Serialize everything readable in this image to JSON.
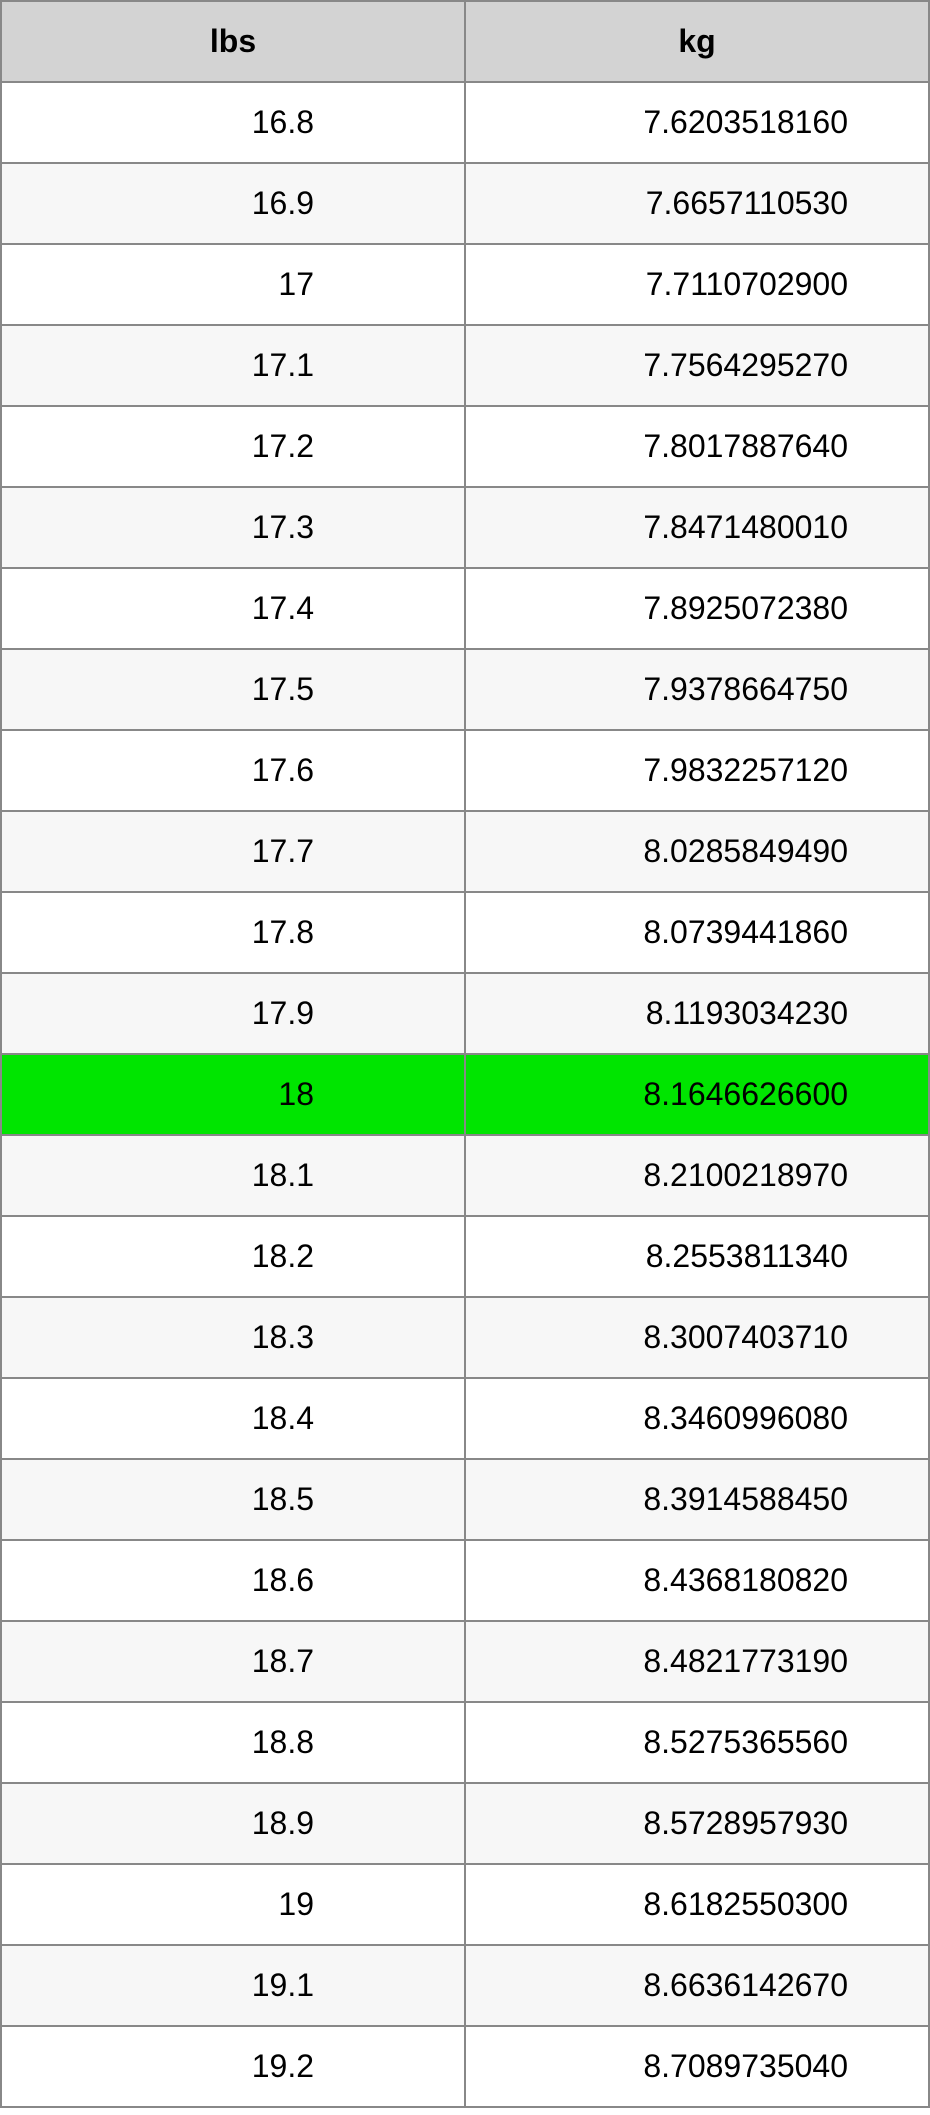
{
  "table": {
    "type": "table",
    "columns": [
      "lbs",
      "kg"
    ],
    "header_bg": "#d3d3d3",
    "border_color": "#888888",
    "row_bg_odd": "#ffffff",
    "row_bg_even": "#f7f7f7",
    "highlight_bg": "#00e500",
    "font_family": "Arial",
    "header_fontsize": 32,
    "cell_fontsize": 32,
    "highlight_index": 12,
    "rows": [
      {
        "lbs": "16.8",
        "kg": "7.6203518160"
      },
      {
        "lbs": "16.9",
        "kg": "7.6657110530"
      },
      {
        "lbs": "17",
        "kg": "7.7110702900"
      },
      {
        "lbs": "17.1",
        "kg": "7.7564295270"
      },
      {
        "lbs": "17.2",
        "kg": "7.8017887640"
      },
      {
        "lbs": "17.3",
        "kg": "7.8471480010"
      },
      {
        "lbs": "17.4",
        "kg": "7.8925072380"
      },
      {
        "lbs": "17.5",
        "kg": "7.9378664750"
      },
      {
        "lbs": "17.6",
        "kg": "7.9832257120"
      },
      {
        "lbs": "17.7",
        "kg": "8.0285849490"
      },
      {
        "lbs": "17.8",
        "kg": "8.0739441860"
      },
      {
        "lbs": "17.9",
        "kg": "8.1193034230"
      },
      {
        "lbs": "18",
        "kg": "8.1646626600"
      },
      {
        "lbs": "18.1",
        "kg": "8.2100218970"
      },
      {
        "lbs": "18.2",
        "kg": "8.2553811340"
      },
      {
        "lbs": "18.3",
        "kg": "8.3007403710"
      },
      {
        "lbs": "18.4",
        "kg": "8.3460996080"
      },
      {
        "lbs": "18.5",
        "kg": "8.3914588450"
      },
      {
        "lbs": "18.6",
        "kg": "8.4368180820"
      },
      {
        "lbs": "18.7",
        "kg": "8.4821773190"
      },
      {
        "lbs": "18.8",
        "kg": "8.5275365560"
      },
      {
        "lbs": "18.9",
        "kg": "8.5728957930"
      },
      {
        "lbs": "19",
        "kg": "8.6182550300"
      },
      {
        "lbs": "19.1",
        "kg": "8.6636142670"
      },
      {
        "lbs": "19.2",
        "kg": "8.7089735040"
      }
    ]
  }
}
